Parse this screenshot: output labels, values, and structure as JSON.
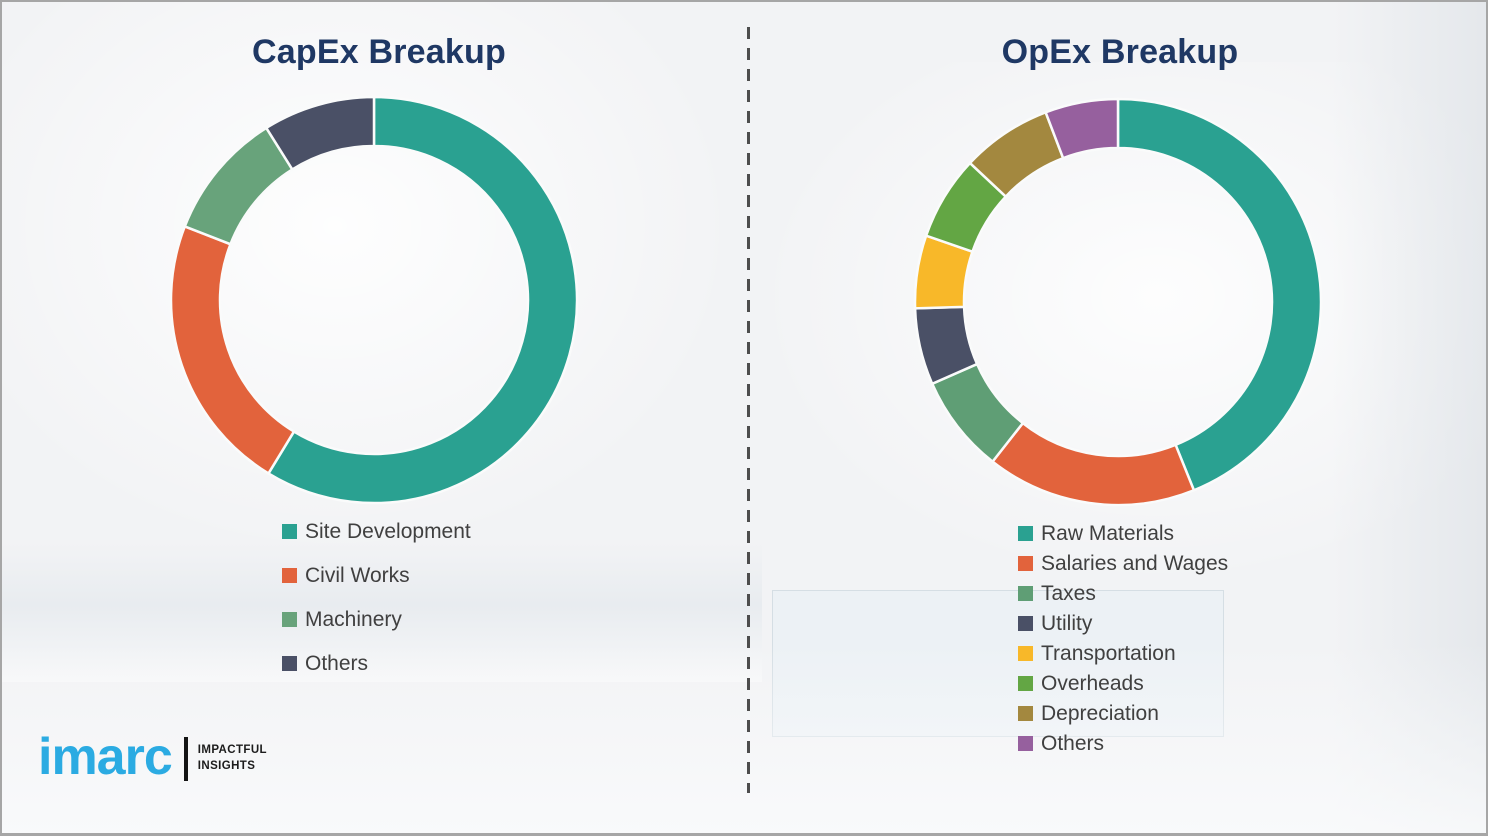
{
  "page": {
    "background_color": "#f2f3f5",
    "border_color": "#a6a6a6",
    "divider_color": "#4d4d4d",
    "title_color": "#1f3864",
    "legend_text_color": "#404040"
  },
  "chart_data": [
    {
      "type": "pie",
      "subtype": "donut",
      "title": "CapEx Breakup",
      "categories": [
        "Site Development",
        "Civil Works",
        "Machinery",
        "Others"
      ],
      "values": [
        58.7,
        22.2,
        10.2,
        8.9
      ],
      "colors": [
        "#2aa191",
        "#e2633c",
        "#68a37b",
        "#4a5066"
      ],
      "start_angle_deg": 0,
      "direction": "clockwise",
      "legend_position": "bottom-left",
      "data_labels": "none"
    },
    {
      "type": "pie",
      "subtype": "donut",
      "title": "OpEx Breakup",
      "categories": [
        "Raw Materials",
        "Salaries and Wages",
        "Taxes",
        "Utility",
        "Transportation",
        "Overheads",
        "Depreciation",
        "Others"
      ],
      "values": [
        43.9,
        16.7,
        7.8,
        6.1,
        5.8,
        6.7,
        7.2,
        5.8
      ],
      "colors": [
        "#2aa191",
        "#e2633c",
        "#5f9e75",
        "#4a5066",
        "#f8b829",
        "#63a644",
        "#a3883f",
        "#96609e"
      ],
      "start_angle_deg": 0,
      "direction": "clockwise",
      "legend_position": "bottom-left",
      "data_labels": "none"
    }
  ],
  "logo": {
    "brand": "imarc",
    "brand_color": "#2babe2",
    "tagline_line1": "IMPACTFUL",
    "tagline_line2": "INSIGHTS"
  }
}
